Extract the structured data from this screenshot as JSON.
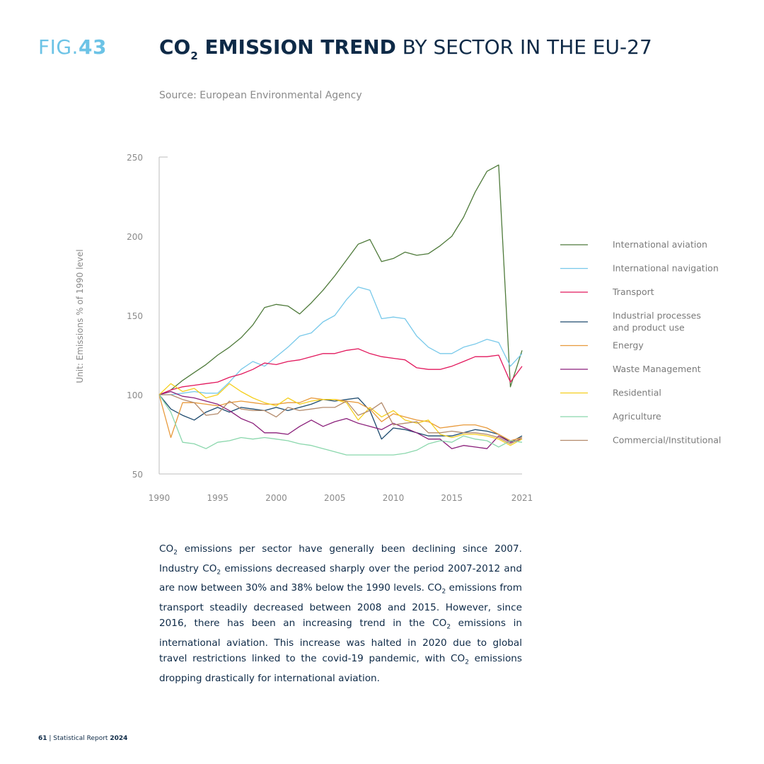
{
  "header": {
    "fig_prefix": "FIG.",
    "fig_number": "43",
    "title_bold_a": "CO",
    "title_sub": "2",
    "title_bold_b": " EMISSION TREND",
    "title_rest": " BY SECTOR IN THE EU-27",
    "source": "Source: European Environmental Agency"
  },
  "chart_data": {
    "type": "line",
    "ylabel": "Unit: Emissions % of 1990 level",
    "ylim": [
      50,
      250
    ],
    "yticks": [
      50,
      100,
      150,
      200,
      250
    ],
    "xlim": [
      1990,
      2021
    ],
    "xticks": [
      1990,
      1995,
      2000,
      2005,
      2010,
      2015,
      2021
    ],
    "x": [
      1990,
      1991,
      1992,
      1993,
      1994,
      1995,
      1996,
      1997,
      1998,
      1999,
      2000,
      2001,
      2002,
      2003,
      2004,
      2005,
      2006,
      2007,
      2008,
      2009,
      2010,
      2011,
      2012,
      2013,
      2014,
      2015,
      2016,
      2017,
      2018,
      2019,
      2020,
      2021
    ],
    "legend_position": "right",
    "series": [
      {
        "name": "International aviation",
        "color": "#4e7a3a",
        "label_lines": [
          "International aviation"
        ],
        "values": [
          100,
          103,
          109,
          114,
          119,
          125,
          130,
          136,
          144,
          155,
          157,
          156,
          151,
          158,
          166,
          175,
          185,
          195,
          198,
          184,
          186,
          190,
          188,
          189,
          194,
          200,
          212,
          228,
          241,
          245,
          105,
          128
        ]
      },
      {
        "name": "International navigation",
        "color": "#78c9ea",
        "label_lines": [
          "International navigation"
        ],
        "values": [
          100,
          100,
          101,
          102,
          101,
          101,
          108,
          116,
          121,
          118,
          124,
          130,
          137,
          139,
          146,
          150,
          160,
          168,
          166,
          148,
          149,
          148,
          137,
          130,
          126,
          126,
          130,
          132,
          135,
          133,
          118,
          126
        ]
      },
      {
        "name": "Transport",
        "color": "#e2175c",
        "label_lines": [
          "Transport"
        ],
        "values": [
          100,
          103,
          105,
          106,
          107,
          108,
          111,
          113,
          116,
          120,
          119,
          121,
          122,
          124,
          126,
          126,
          128,
          129,
          126,
          124,
          123,
          122,
          117,
          116,
          116,
          118,
          121,
          124,
          124,
          125,
          108,
          118
        ]
      },
      {
        "name": "Industrial processes and product use",
        "color": "#1d4a6e",
        "label_lines": [
          "Industrial processes",
          "and product use"
        ],
        "values": [
          100,
          91,
          87,
          84,
          89,
          92,
          89,
          92,
          91,
          90,
          92,
          90,
          92,
          94,
          97,
          96,
          97,
          98,
          90,
          72,
          79,
          78,
          76,
          74,
          74,
          74,
          76,
          78,
          77,
          75,
          70,
          74
        ]
      },
      {
        "name": "Energy",
        "color": "#e89a3c",
        "label_lines": [
          "Energy"
        ],
        "values": [
          100,
          73,
          95,
          95,
          94,
          93,
          95,
          96,
          95,
          94,
          94,
          95,
          95,
          98,
          97,
          97,
          96,
          95,
          91,
          83,
          88,
          86,
          84,
          83,
          79,
          80,
          81,
          81,
          79,
          75,
          71,
          73
        ]
      },
      {
        "name": "Waste Management",
        "color": "#8a1f7a",
        "label_lines": [
          "Waste Management"
        ],
        "values": [
          100,
          102,
          99,
          98,
          96,
          94,
          90,
          85,
          82,
          76,
          76,
          75,
          80,
          84,
          80,
          83,
          85,
          82,
          80,
          78,
          82,
          79,
          76,
          72,
          72,
          66,
          68,
          67,
          66,
          74,
          70,
          72
        ]
      },
      {
        "name": "Residential",
        "color": "#f5cf1e",
        "label_lines": [
          "Residential"
        ],
        "values": [
          100,
          107,
          102,
          104,
          98,
          100,
          107,
          102,
          98,
          95,
          93,
          98,
          94,
          96,
          97,
          97,
          95,
          84,
          92,
          86,
          90,
          84,
          82,
          84,
          75,
          73,
          75,
          75,
          74,
          72,
          68,
          72
        ]
      },
      {
        "name": "Agriculture",
        "color": "#8ad7ac",
        "label_lines": [
          "Agriculture"
        ],
        "values": [
          100,
          89,
          70,
          69,
          66,
          70,
          71,
          73,
          72,
          73,
          72,
          71,
          69,
          68,
          66,
          64,
          62,
          62,
          62,
          62,
          62,
          63,
          65,
          69,
          71,
          70,
          74,
          72,
          71,
          67,
          71,
          70
        ]
      },
      {
        "name": "Commercial/Institutional",
        "color": "#b38a6b",
        "label_lines": [
          "Commercial/Institutional"
        ],
        "values": [
          100,
          100,
          97,
          95,
          87,
          88,
          96,
          91,
          90,
          90,
          86,
          92,
          90,
          91,
          92,
          92,
          96,
          87,
          90,
          95,
          81,
          82,
          83,
          76,
          76,
          77,
          76,
          76,
          75,
          73,
          69,
          73
        ]
      }
    ]
  },
  "body": {
    "p": [
      {
        "t": "CO"
      },
      {
        "s": "2"
      },
      {
        "t": " emissions per sector have generally been declining since 2007. Industry CO"
      },
      {
        "s": "2"
      },
      {
        "t": " emissions decreased sharply over the period 2007-2012 and are now between 30% and 38% below the 1990 levels. CO"
      },
      {
        "s": "2"
      },
      {
        "t": " emissions from transport steadily decreased between 2008 and 2015. However, since 2016, there has been an increasing trend in the CO"
      },
      {
        "s": "2"
      },
      {
        "t": " emissions in international aviation. This increase was halted in 2020 due to global travel restrictions linked to the covid-19 pandemic, with CO"
      },
      {
        "s": "2"
      },
      {
        "t": " emissions dropping drastically for international aviation."
      }
    ]
  },
  "footer": {
    "page_number": "61",
    "separator": " | Statistical Report ",
    "year": "2024"
  }
}
